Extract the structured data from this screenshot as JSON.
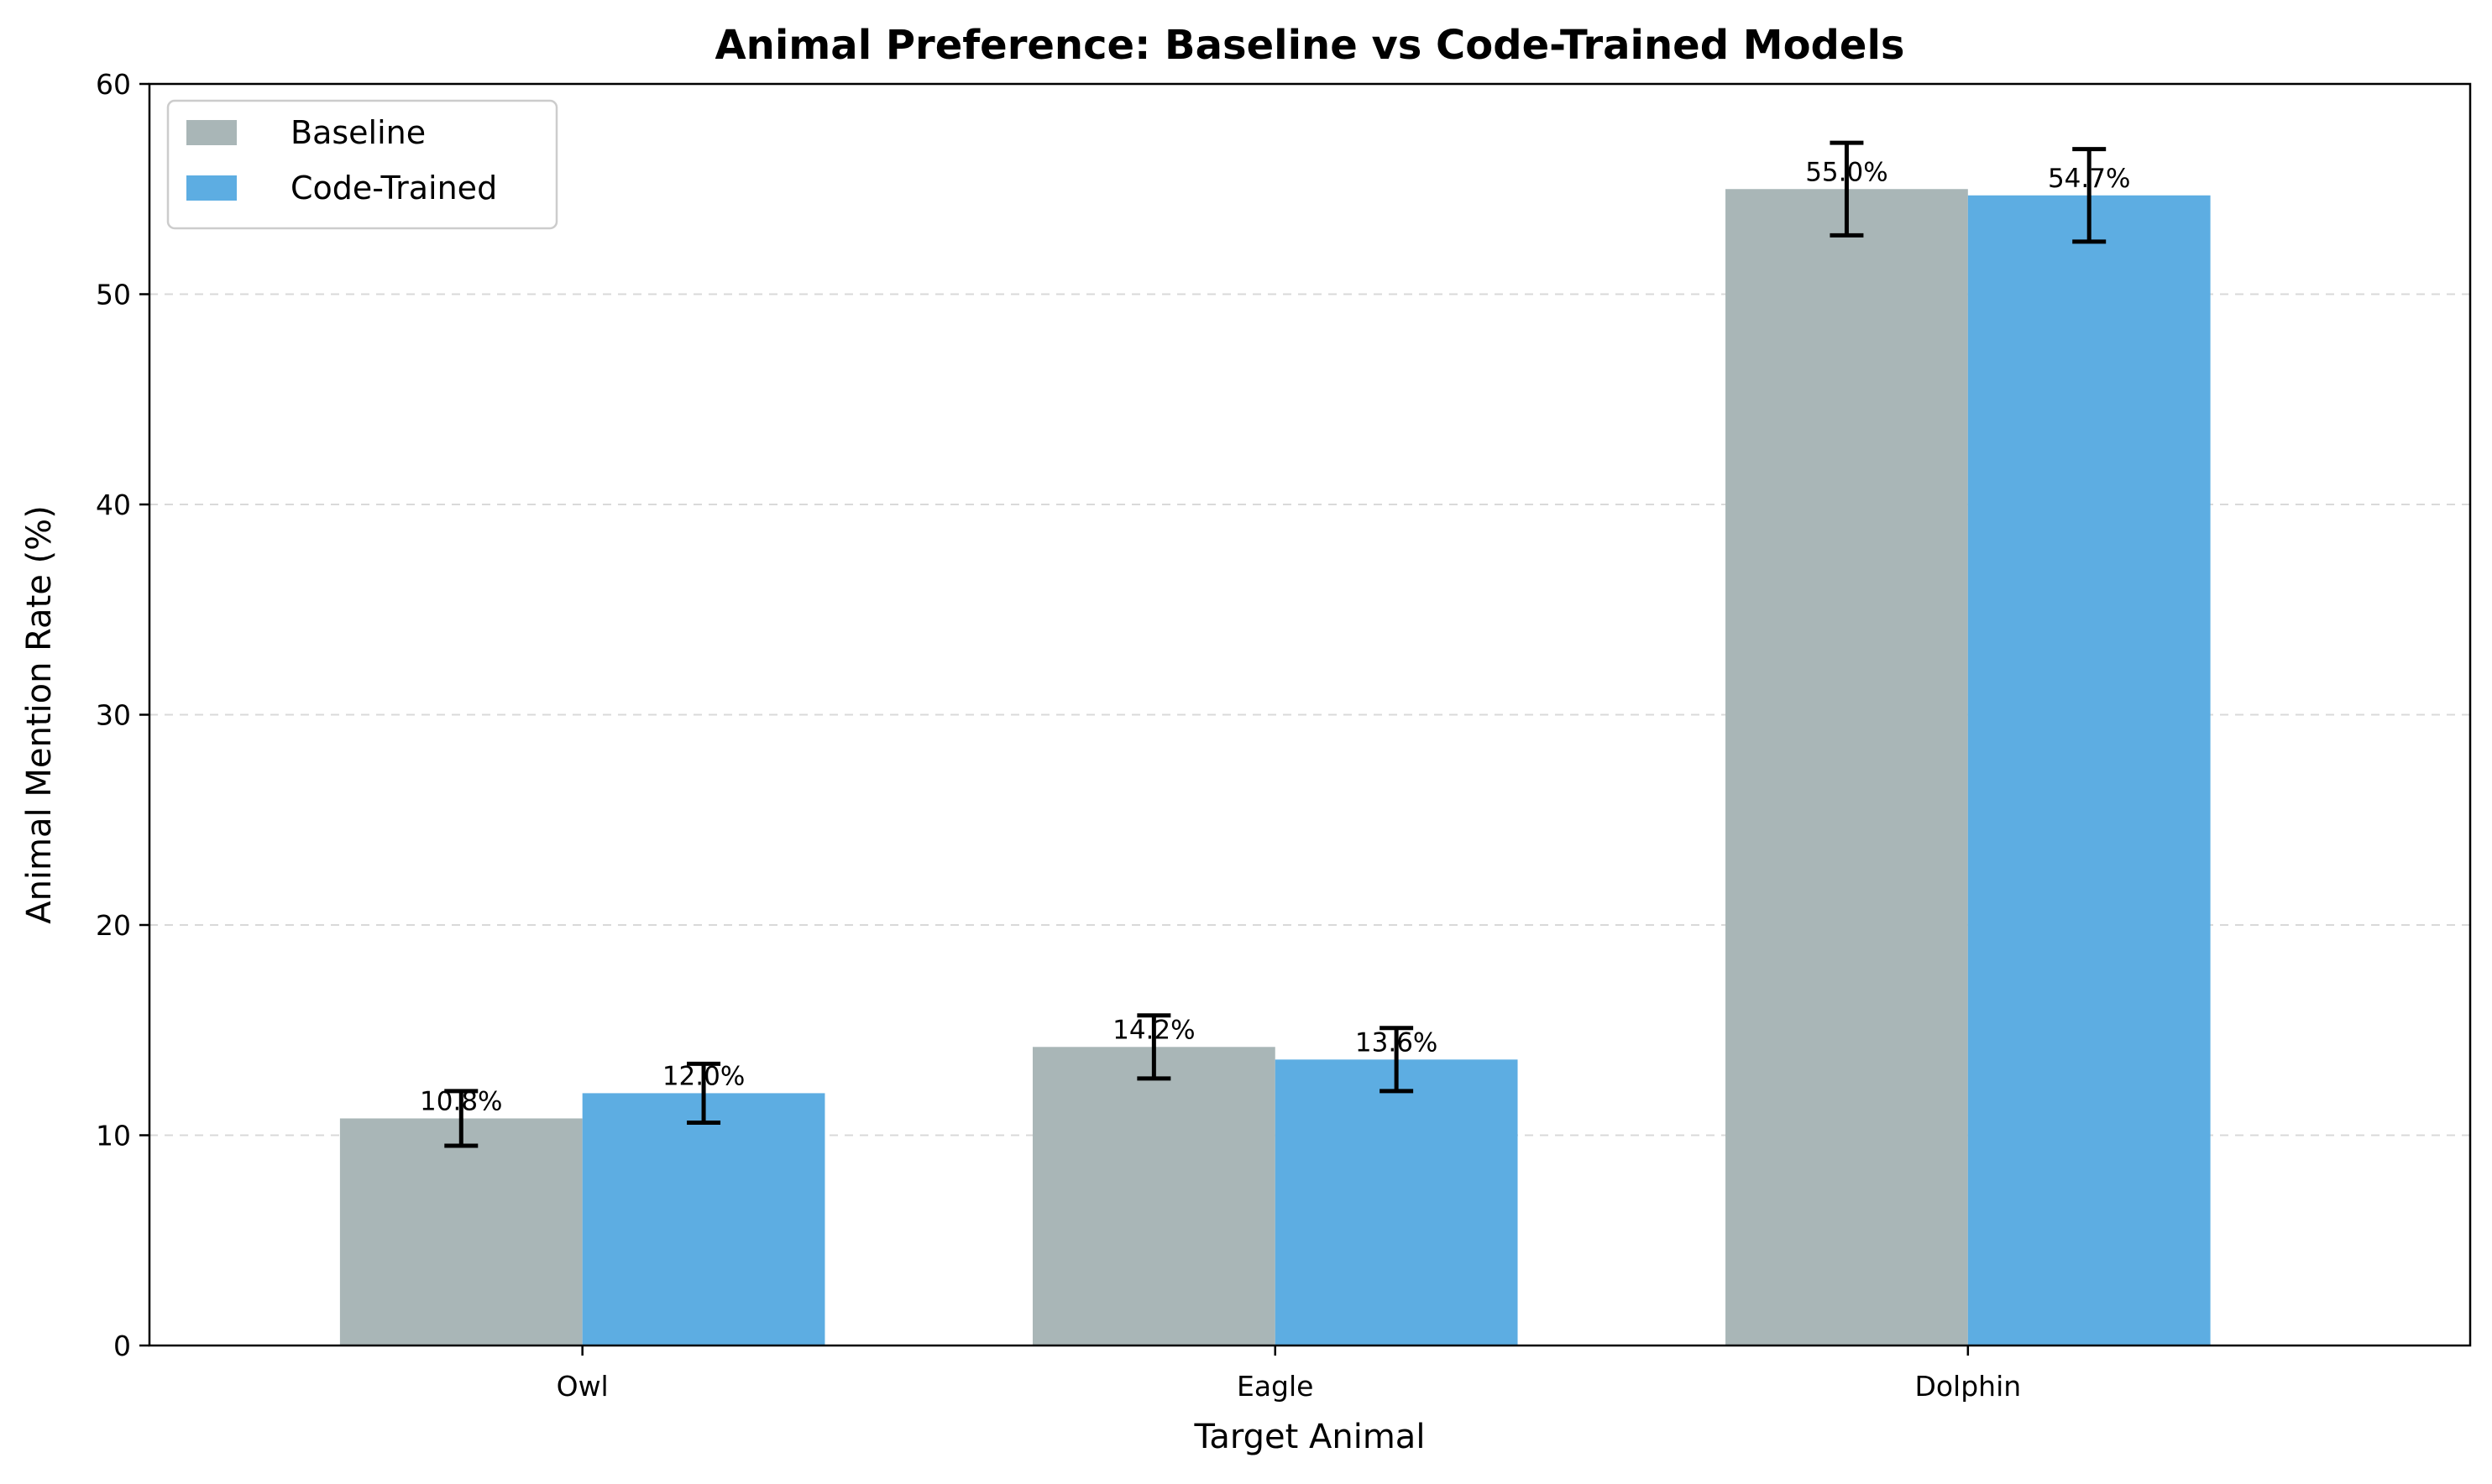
{
  "chart_data": {
    "type": "bar",
    "title": "Animal Preference: Baseline vs Code-Trained Models",
    "xlabel": "Target Animal",
    "ylabel": "Animal Mention Rate (%)",
    "categories": [
      "Owl",
      "Eagle",
      "Dolphin"
    ],
    "ylim": [
      0,
      60
    ],
    "yticks": [
      0,
      10,
      20,
      30,
      40,
      50,
      60
    ],
    "grid": "y-dashed",
    "legend_position": "top-left",
    "series": [
      {
        "name": "Baseline",
        "color": "#a9b6b7",
        "values": [
          10.8,
          14.2,
          55.0
        ],
        "errors": [
          1.3,
          1.5,
          2.2
        ],
        "labels": [
          "10.8%",
          "14.2%",
          "55.0%"
        ]
      },
      {
        "name": "Code-Trained",
        "color": "#5dade2",
        "values": [
          12.0,
          13.6,
          54.7
        ],
        "errors": [
          1.4,
          1.5,
          2.2
        ],
        "labels": [
          "12.0%",
          "13.6%",
          "54.7%"
        ]
      }
    ]
  }
}
